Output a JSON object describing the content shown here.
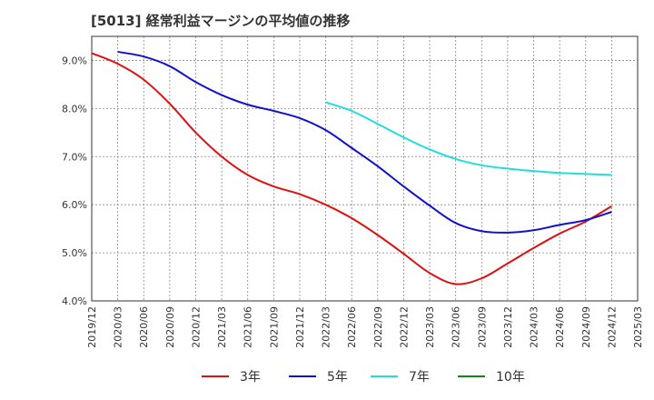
{
  "chart_data": {
    "type": "line",
    "title": "[5013]  経常利益マージンの平均値の推移",
    "xlabel": "",
    "ylabel": "",
    "ylim": [
      4.0,
      9.5
    ],
    "y_ticks": [
      4.0,
      5.0,
      6.0,
      7.0,
      8.0,
      9.0
    ],
    "y_tick_labels": [
      "4.0%",
      "5.0%",
      "6.0%",
      "7.0%",
      "8.0%",
      "9.0%"
    ],
    "x_ticks": [
      "2019/12",
      "2020/03",
      "2020/06",
      "2020/09",
      "2020/12",
      "2021/03",
      "2021/06",
      "2021/09",
      "2021/12",
      "2022/03",
      "2022/06",
      "2022/09",
      "2022/12",
      "2023/03",
      "2023/06",
      "2023/09",
      "2023/12",
      "2024/03",
      "2024/06",
      "2024/09",
      "2024/12",
      "2025/03"
    ],
    "grid": true,
    "legend_position": "bottom",
    "series": [
      {
        "name": "3年",
        "color": "#dd1111",
        "x": [
          "2019/12",
          "2020/03",
          "2020/06",
          "2020/09",
          "2020/12",
          "2021/03",
          "2021/06",
          "2021/09",
          "2021/12",
          "2022/03",
          "2022/06",
          "2022/09",
          "2022/12",
          "2023/03",
          "2023/06",
          "2023/09",
          "2023/12",
          "2024/03",
          "2024/06",
          "2024/09",
          "2024/12"
        ],
        "values": [
          9.15,
          8.93,
          8.6,
          8.1,
          7.5,
          7.0,
          6.62,
          6.38,
          6.22,
          6.0,
          5.72,
          5.37,
          4.98,
          4.58,
          4.35,
          4.47,
          4.78,
          5.1,
          5.4,
          5.65,
          5.97
        ]
      },
      {
        "name": "5年",
        "color": "#1111cc",
        "x": [
          "2020/03",
          "2020/06",
          "2020/09",
          "2020/12",
          "2021/03",
          "2021/06",
          "2021/09",
          "2021/12",
          "2022/03",
          "2022/06",
          "2022/09",
          "2022/12",
          "2023/03",
          "2023/06",
          "2023/09",
          "2023/12",
          "2024/03",
          "2024/06",
          "2024/09",
          "2024/12"
        ],
        "values": [
          9.18,
          9.08,
          8.88,
          8.55,
          8.28,
          8.08,
          7.95,
          7.8,
          7.55,
          7.18,
          6.8,
          6.38,
          5.98,
          5.62,
          5.45,
          5.42,
          5.47,
          5.58,
          5.68,
          5.85
        ]
      },
      {
        "name": "7年",
        "color": "#22dddd",
        "x": [
          "2022/03",
          "2022/06",
          "2022/09",
          "2022/12",
          "2023/03",
          "2023/06",
          "2023/09",
          "2023/12",
          "2024/03",
          "2024/06",
          "2024/09",
          "2024/12"
        ],
        "values": [
          8.13,
          7.95,
          7.68,
          7.4,
          7.15,
          6.95,
          6.82,
          6.75,
          6.7,
          6.66,
          6.64,
          6.62
        ]
      },
      {
        "name": "10年",
        "color": "#118811",
        "x": [],
        "values": []
      }
    ]
  }
}
